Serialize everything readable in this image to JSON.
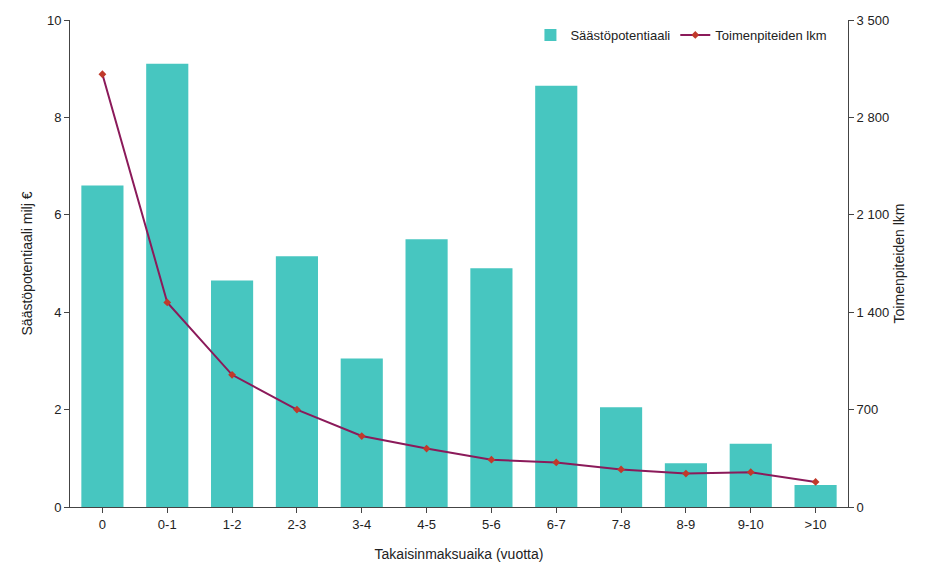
{
  "chart_data": {
    "type": "bar",
    "xlabel": "Takaisinmaksuaika (vuotta)",
    "ylabel": "Säästöpotentiaali milj €",
    "y2label": "Toimenpiteiden lkm",
    "categories": [
      "0",
      "0-1",
      "1-2",
      "2-3",
      "3-4",
      "4-5",
      "5-6",
      "6-7",
      "7-8",
      "8-9",
      "9-10",
      ">10"
    ],
    "series": [
      {
        "name": "Säästöpotentiaali",
        "type": "bar",
        "color": "#47c6c0",
        "values": [
          6.6,
          9.1,
          4.65,
          5.15,
          3.05,
          5.5,
          4.9,
          8.65,
          2.05,
          0.9,
          1.3,
          0.45
        ]
      },
      {
        "name": "Toimenpiteiden lkm",
        "type": "line",
        "axis": "y2",
        "color": "#8b1a5a",
        "marker": "diamond",
        "values": [
          3110,
          1470,
          950,
          700,
          510,
          420,
          340,
          320,
          270,
          240,
          250,
          180
        ]
      }
    ],
    "ylim": [
      0,
      10
    ],
    "yticks": [
      0,
      2,
      4,
      6,
      8,
      10
    ],
    "y2lim": [
      0,
      3500
    ],
    "y2ticks": [
      0,
      700,
      {
        "value": 1400,
        "label": "1 400"
      },
      {
        "value": 2100,
        "label": "2 100"
      },
      {
        "value": 2800,
        "label": "2 800"
      },
      {
        "value": 3500,
        "label": "3 500"
      }
    ],
    "grid": false,
    "legend": "top right"
  }
}
